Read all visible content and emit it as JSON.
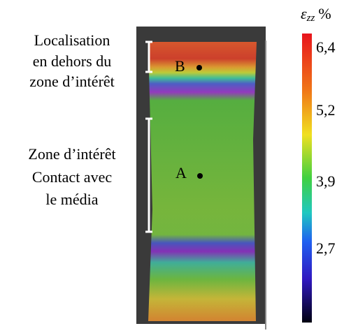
{
  "annotations": {
    "top": [
      "Localisation",
      "en dehors du",
      "zone d’intérêt"
    ],
    "middle": [
      "Zone d’intérêt",
      "Contact avec",
      "le média"
    ]
  },
  "points": [
    {
      "label": "B"
    },
    {
      "label": "A"
    }
  ],
  "colorbar": {
    "symbol": "ε",
    "subscript": "zz",
    "unit": "%",
    "ticks": [
      "6,4",
      "5,2",
      "3,9",
      "2,7"
    ]
  }
}
